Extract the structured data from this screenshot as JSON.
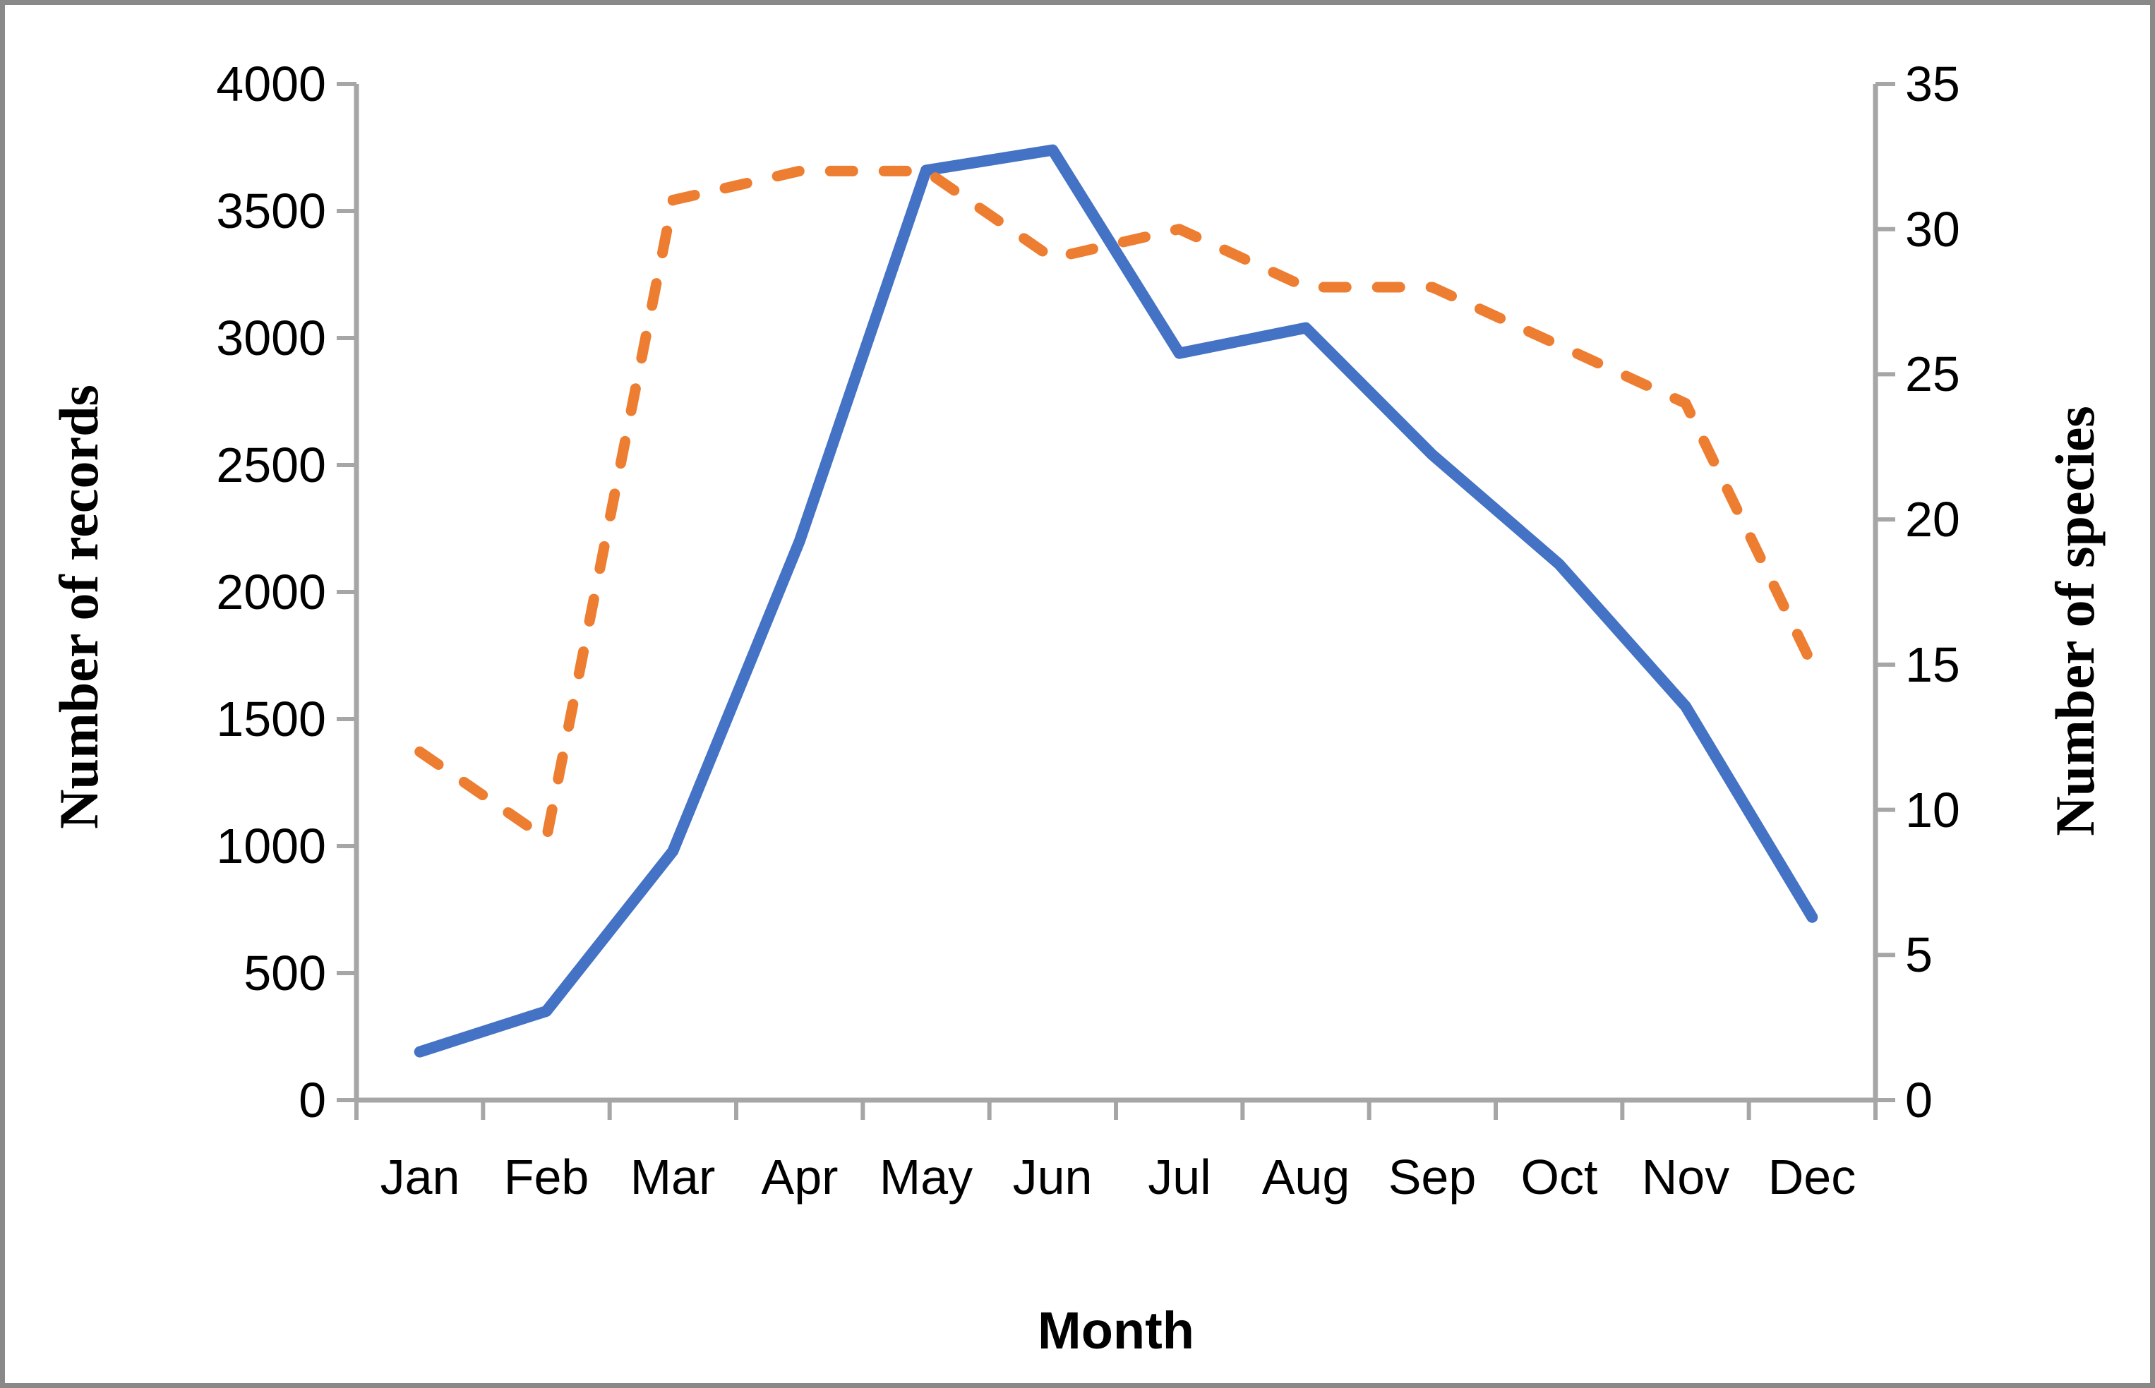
{
  "chart_data": {
    "type": "line",
    "categories": [
      "Jan",
      "Feb",
      "Mar",
      "Apr",
      "May",
      "Jun",
      "Jul",
      "Aug",
      "Sep",
      "Oct",
      "Nov",
      "Dec"
    ],
    "series": [
      {
        "name": "Number of records",
        "axis": "left",
        "line_style": "solid",
        "color": "#4472C4",
        "values": [
          190,
          350,
          980,
          2200,
          3660,
          3740,
          2940,
          3040,
          2540,
          2110,
          1550,
          720
        ]
      },
      {
        "name": "Number of species",
        "axis": "right",
        "line_style": "dashed",
        "color": "#ED7D31",
        "values": [
          12,
          9,
          31,
          32,
          32,
          29,
          30,
          28,
          28,
          26,
          24,
          15
        ]
      }
    ],
    "left_axis": {
      "label": "Number of records",
      "min": 0,
      "max": 4000,
      "step": 500
    },
    "right_axis": {
      "label": "Number of species",
      "min": 0,
      "max": 35,
      "step": 5
    },
    "x_axis": {
      "label": "Month"
    },
    "grid": false,
    "legend": "none",
    "axis_color": "#A6A6A6",
    "text_color": "#000000",
    "border_color": "#898989",
    "background": "#FFFFFF"
  }
}
